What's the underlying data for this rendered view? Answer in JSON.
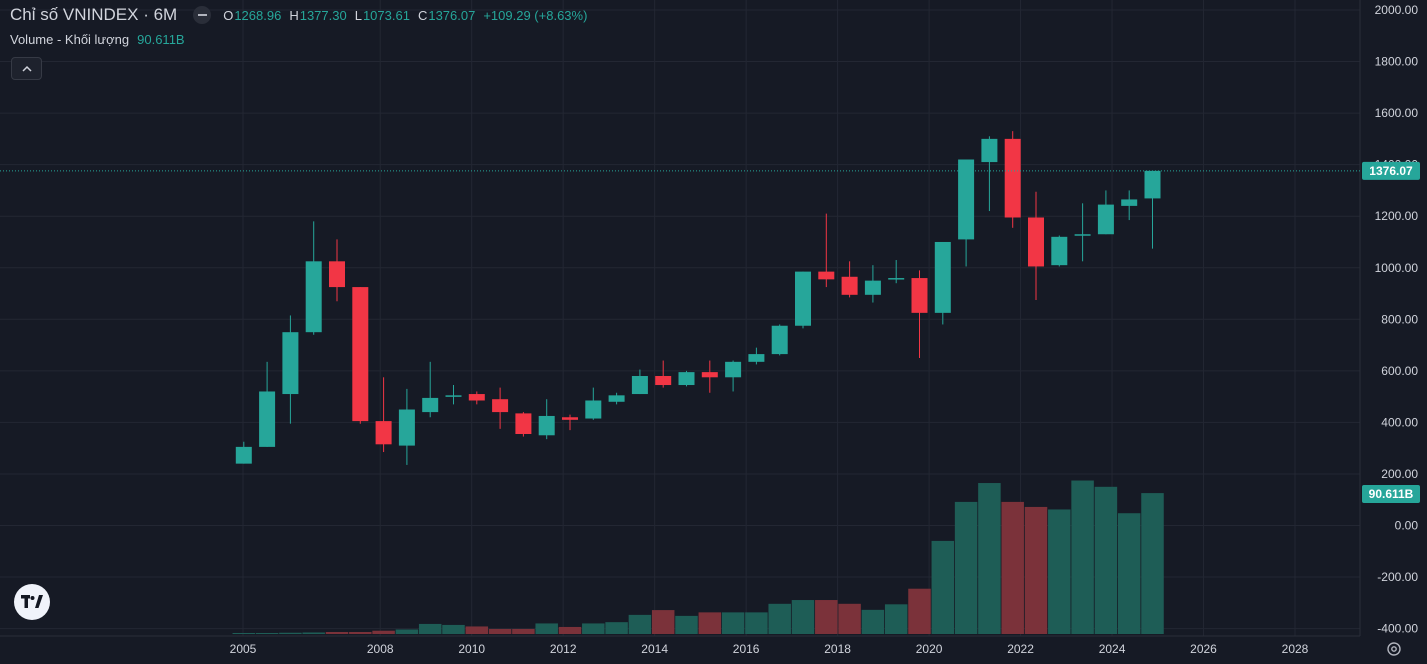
{
  "legend": {
    "title": "Chỉ số VNINDEX · 6M",
    "open_label": "O",
    "open": "1268.96",
    "high_label": "H",
    "high": "1377.30",
    "low_label": "L",
    "low": "1073.61",
    "close_label": "C",
    "close": "1376.07",
    "change": "+109.29 (+8.63%)",
    "volume_label": "Volume - Khối lượng",
    "volume_value": "90.611B"
  },
  "colors": {
    "up": "#26a69a",
    "down": "#f23645",
    "vol_up": "#1e5d56",
    "vol_down": "#7b323a",
    "background": "#161a25",
    "grid": "#232733"
  },
  "chart_data": {
    "type": "candlestick",
    "title": "Chỉ số VNINDEX · 6M",
    "price_axis": {
      "ticks": [
        "2000.00",
        "1800.00",
        "1600.00",
        "1400.00",
        "1200.00",
        "1000.00",
        "800.00",
        "600.00",
        "400.00",
        "200.00",
        "0.00",
        "-200.00",
        "-400.00"
      ],
      "range": [
        -400,
        2000
      ]
    },
    "time_axis": {
      "ticks": [
        "2005",
        "2008",
        "2010",
        "2012",
        "2014",
        "2016",
        "2018",
        "2020",
        "2022",
        "2024",
        "2026",
        "2028"
      ]
    },
    "last_price_label": "1376.07",
    "last_volume_label": "90.611B",
    "periods": [
      "2005 H2",
      "2006 H1",
      "2006 H2",
      "2007 H1",
      "2007 H2",
      "2008 H1",
      "2008 H2",
      "2009 H1",
      "2009 H2",
      "2010 H1",
      "2010 H2",
      "2011 H1",
      "2011 H2",
      "2012 H1",
      "2012 H2",
      "2013 H1",
      "2013 H2",
      "2014 H1",
      "2014 H2",
      "2015 H1",
      "2015 H2",
      "2016 H1",
      "2016 H2",
      "2017 H1",
      "2017 H2",
      "2018 H1",
      "2018 H2",
      "2019 H1",
      "2019 H2",
      "2020 H1",
      "2020 H2",
      "2021 H1",
      "2021 H2",
      "2022 H1",
      "2022 H2",
      "2023 H1",
      "2023 H2",
      "2024 H1",
      "2024 H2",
      "2025 H1"
    ],
    "candles": [
      {
        "o": 240,
        "h": 325,
        "l": 240,
        "c": 305
      },
      {
        "o": 305,
        "h": 635,
        "l": 305,
        "c": 520
      },
      {
        "o": 510,
        "h": 815,
        "l": 395,
        "c": 750
      },
      {
        "o": 750,
        "h": 1180,
        "l": 740,
        "c": 1025
      },
      {
        "o": 1025,
        "h": 1110,
        "l": 870,
        "c": 925
      },
      {
        "o": 925,
        "h": 925,
        "l": 395,
        "c": 405
      },
      {
        "o": 405,
        "h": 575,
        "l": 285,
        "c": 315
      },
      {
        "o": 310,
        "h": 530,
        "l": 235,
        "c": 450
      },
      {
        "o": 440,
        "h": 635,
        "l": 420,
        "c": 495
      },
      {
        "o": 500,
        "h": 545,
        "l": 470,
        "c": 505
      },
      {
        "o": 510,
        "h": 520,
        "l": 470,
        "c": 485
      },
      {
        "o": 490,
        "h": 535,
        "l": 375,
        "c": 440
      },
      {
        "o": 435,
        "h": 440,
        "l": 345,
        "c": 355
      },
      {
        "o": 350,
        "h": 490,
        "l": 335,
        "c": 425
      },
      {
        "o": 420,
        "h": 430,
        "l": 370,
        "c": 410
      },
      {
        "o": 415,
        "h": 535,
        "l": 410,
        "c": 485
      },
      {
        "o": 480,
        "h": 515,
        "l": 470,
        "c": 505
      },
      {
        "o": 510,
        "h": 605,
        "l": 510,
        "c": 580
      },
      {
        "o": 580,
        "h": 640,
        "l": 535,
        "c": 545
      },
      {
        "o": 545,
        "h": 600,
        "l": 540,
        "c": 595
      },
      {
        "o": 595,
        "h": 640,
        "l": 515,
        "c": 575
      },
      {
        "o": 575,
        "h": 640,
        "l": 520,
        "c": 635
      },
      {
        "o": 635,
        "h": 690,
        "l": 625,
        "c": 665
      },
      {
        "o": 665,
        "h": 780,
        "l": 660,
        "c": 775
      },
      {
        "o": 775,
        "h": 985,
        "l": 765,
        "c": 985
      },
      {
        "o": 985,
        "h": 1210,
        "l": 925,
        "c": 955
      },
      {
        "o": 965,
        "h": 1025,
        "l": 885,
        "c": 895
      },
      {
        "o": 895,
        "h": 1010,
        "l": 865,
        "c": 950
      },
      {
        "o": 955,
        "h": 1030,
        "l": 940,
        "c": 960
      },
      {
        "o": 960,
        "h": 990,
        "l": 650,
        "c": 825
      },
      {
        "o": 825,
        "h": 1100,
        "l": 780,
        "c": 1100
      },
      {
        "o": 1110,
        "h": 1420,
        "l": 1005,
        "c": 1420
      },
      {
        "o": 1410,
        "h": 1510,
        "l": 1220,
        "c": 1500
      },
      {
        "o": 1500,
        "h": 1530,
        "l": 1155,
        "c": 1195
      },
      {
        "o": 1195,
        "h": 1295,
        "l": 875,
        "c": 1005
      },
      {
        "o": 1010,
        "h": 1125,
        "l": 1005,
        "c": 1120
      },
      {
        "o": 1125,
        "h": 1250,
        "l": 1025,
        "c": 1130
      },
      {
        "o": 1130,
        "h": 1300,
        "l": 1130,
        "c": 1245
      },
      {
        "o": 1240,
        "h": 1300,
        "l": 1185,
        "c": 1265
      },
      {
        "o": 1269,
        "h": 1377,
        "l": 1074,
        "c": 1376
      }
    ],
    "volume": [
      {
        "v": 2,
        "up": true
      },
      {
        "v": 3,
        "up": true
      },
      {
        "v": 5,
        "up": true
      },
      {
        "v": 6,
        "up": true
      },
      {
        "v": 8,
        "up": false
      },
      {
        "v": 8,
        "up": false
      },
      {
        "v": 13,
        "up": false
      },
      {
        "v": 18,
        "up": true
      },
      {
        "v": 40,
        "up": true
      },
      {
        "v": 36,
        "up": true
      },
      {
        "v": 30,
        "up": false
      },
      {
        "v": 20,
        "up": false
      },
      {
        "v": 20,
        "up": false
      },
      {
        "v": 42,
        "up": true
      },
      {
        "v": 28,
        "up": false
      },
      {
        "v": 42,
        "up": true
      },
      {
        "v": 47,
        "up": true
      },
      {
        "v": 76,
        "up": true
      },
      {
        "v": 95,
        "up": false
      },
      {
        "v": 72,
        "up": true
      },
      {
        "v": 86,
        "up": false
      },
      {
        "v": 86,
        "up": true
      },
      {
        "v": 86,
        "up": true
      },
      {
        "v": 120,
        "up": true
      },
      {
        "v": 135,
        "up": true
      },
      {
        "v": 135,
        "up": false
      },
      {
        "v": 120,
        "up": false
      },
      {
        "v": 96,
        "up": true
      },
      {
        "v": 118,
        "up": true
      },
      {
        "v": 180,
        "up": false
      },
      {
        "v": 370,
        "up": true
      },
      {
        "v": 525,
        "up": true
      },
      {
        "v": 600,
        "up": true
      },
      {
        "v": 525,
        "up": false
      },
      {
        "v": 505,
        "up": false
      },
      {
        "v": 495,
        "up": true
      },
      {
        "v": 610,
        "up": true
      },
      {
        "v": 585,
        "up": true
      },
      {
        "v": 480,
        "up": true
      },
      {
        "v": 560,
        "up": true
      }
    ]
  }
}
